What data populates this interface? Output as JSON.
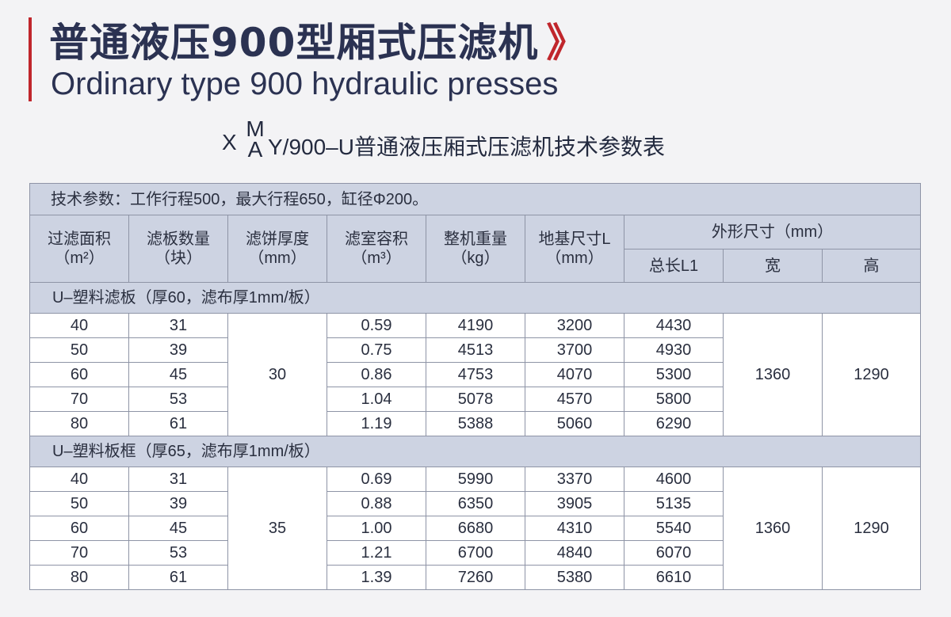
{
  "header": {
    "title_cn": "普通液压900型厢式压滤机",
    "title_chevron": "》",
    "title_en": "Ordinary type 900 hydraulic presses",
    "subtitle": {
      "prefix": "X",
      "stack_top": "M",
      "stack_bottom": "A",
      "rest": "Y/900–U普通液压厢式压滤机技术参数表"
    }
  },
  "table": {
    "note": "技术参数：工作行程500，最大行程650，缸径Φ200。",
    "headers": {
      "area": [
        "过滤面积",
        "（m²）"
      ],
      "plates": [
        "滤板数量",
        "（块）"
      ],
      "cake": [
        "滤饼厚度",
        "（mm）"
      ],
      "volume": [
        "滤室容积",
        "（m³）"
      ],
      "weight": [
        "整机重量",
        "（kg）"
      ],
      "foundation": [
        "地基尺寸L",
        "（mm）"
      ],
      "dimensions": "外形尺寸（mm）",
      "length": "总长L1",
      "width": "宽",
      "height": "高"
    },
    "groups": [
      {
        "label": "U–塑料滤板（厚60，滤布厚1mm/板）",
        "cake": "30",
        "width": "1360",
        "height": "1290",
        "rows": [
          {
            "area": "40",
            "plates": "31",
            "volume": "0.59",
            "weight": "4190",
            "foundation": "3200",
            "length": "4430"
          },
          {
            "area": "50",
            "plates": "39",
            "volume": "0.75",
            "weight": "4513",
            "foundation": "3700",
            "length": "4930"
          },
          {
            "area": "60",
            "plates": "45",
            "volume": "0.86",
            "weight": "4753",
            "foundation": "4070",
            "length": "5300"
          },
          {
            "area": "70",
            "plates": "53",
            "volume": "1.04",
            "weight": "5078",
            "foundation": "4570",
            "length": "5800"
          },
          {
            "area": "80",
            "plates": "61",
            "volume": "1.19",
            "weight": "5388",
            "foundation": "5060",
            "length": "6290"
          }
        ]
      },
      {
        "label": "U–塑料板框（厚65，滤布厚1mm/板）",
        "cake": "35",
        "width": "1360",
        "height": "1290",
        "rows": [
          {
            "area": "40",
            "plates": "31",
            "volume": "0.69",
            "weight": "5990",
            "foundation": "3370",
            "length": "4600"
          },
          {
            "area": "50",
            "plates": "39",
            "volume": "0.88",
            "weight": "6350",
            "foundation": "3905",
            "length": "5135"
          },
          {
            "area": "60",
            "plates": "45",
            "volume": "1.00",
            "weight": "6680",
            "foundation": "4310",
            "length": "5540"
          },
          {
            "area": "70",
            "plates": "53",
            "volume": "1.21",
            "weight": "6700",
            "foundation": "4840",
            "length": "6070"
          },
          {
            "area": "80",
            "plates": "61",
            "volume": "1.39",
            "weight": "7260",
            "foundation": "5380",
            "length": "6610"
          }
        ]
      }
    ]
  },
  "colors": {
    "accent": "#c0262c",
    "title": "#2b3252",
    "header_fill": "#cdd3e2",
    "border": "#8e94a6",
    "page_background": "#f3f3f5"
  }
}
